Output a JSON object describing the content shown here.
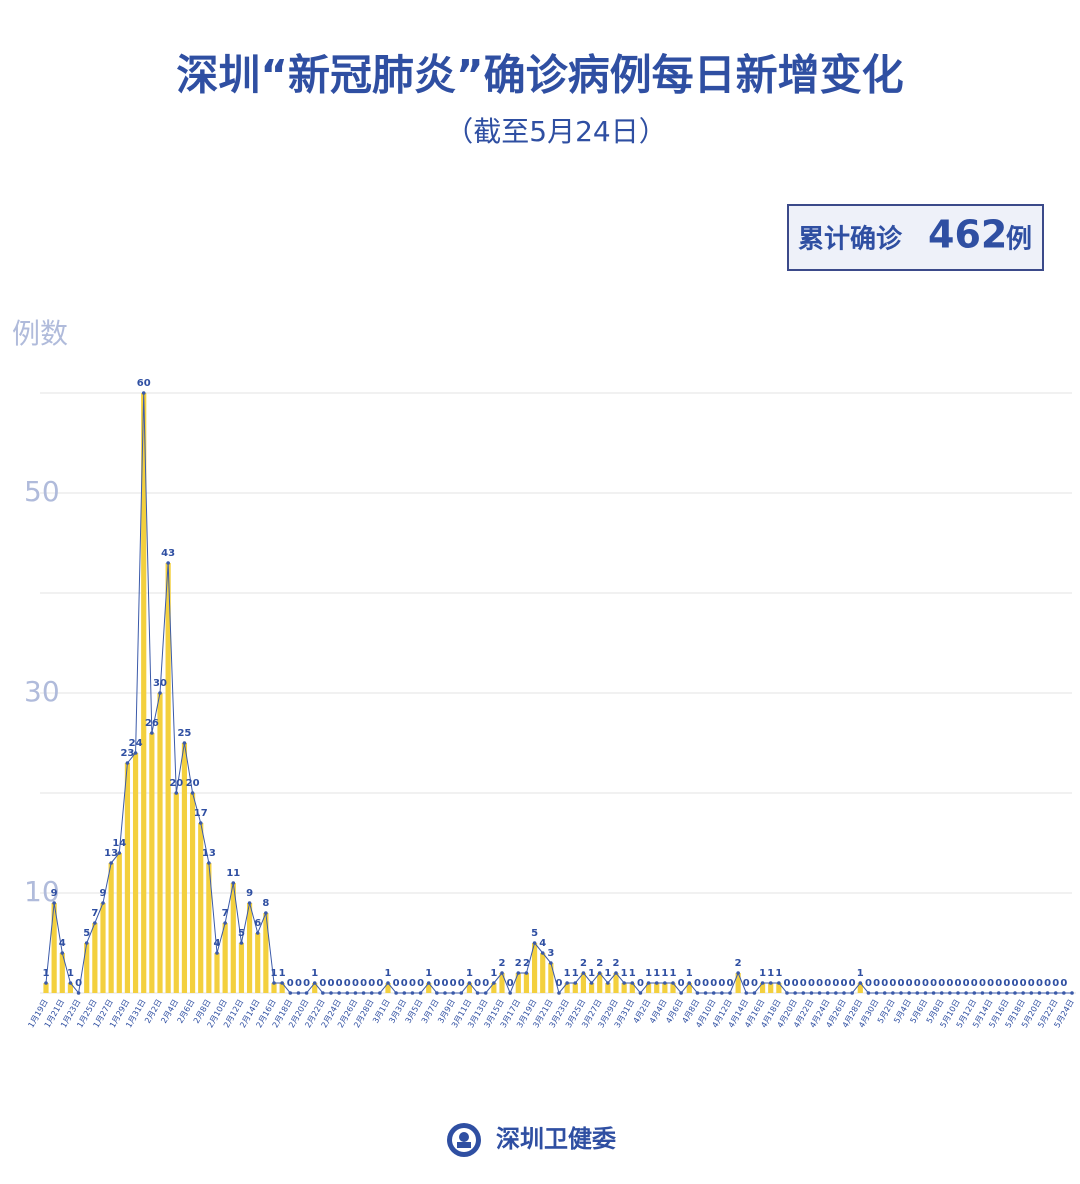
{
  "chart_data": {
    "type": "bar-line",
    "title": "深圳“新冠肺炎”确诊病例每日新增变化",
    "subtitle": "（截至5月24日）",
    "total_box": {
      "prefix": "累计确诊",
      "value": "462",
      "suffix": "例"
    },
    "y_label": "例数",
    "source": "深圳卫健委",
    "categories": [
      "1月19日",
      null,
      "1月21日",
      null,
      "1月23日",
      null,
      "1月25日",
      null,
      "1月27日",
      null,
      "1月29日",
      null,
      "1月31日",
      null,
      "2月2日",
      null,
      "2月4日",
      null,
      "2月6日",
      null,
      "2月8日",
      null,
      "2月10日",
      null,
      "2月12日",
      null,
      "2月14日",
      null,
      "2月16日",
      null,
      "2月18日",
      null,
      "2月20日",
      null,
      "2月22日",
      null,
      "2月24日",
      null,
      "2月26日",
      null,
      "2月28日",
      null,
      "3月1日",
      null,
      "3月3日",
      null,
      "3月5日",
      null,
      "3月7日",
      null,
      "3月9日",
      null,
      "3月11日",
      null,
      "3月13日",
      null,
      "3月15日",
      null,
      "3月17日",
      null,
      "3月19日",
      null,
      "3月21日",
      null,
      "3月23日",
      null,
      "3月25日",
      null,
      "3月27日",
      null,
      "3月29日",
      null,
      "3月31日",
      null,
      "4月2日",
      null,
      "4月4日",
      null,
      "4月6日",
      null,
      "4月8日",
      null,
      "4月10日",
      null,
      "4月12日",
      null,
      "4月14日",
      null,
      "4月16日",
      null,
      "4月18日",
      null,
      "4月20日",
      null,
      "4月22日",
      null,
      "4月24日",
      null,
      "4月26日",
      null,
      "4月28日",
      null,
      "4月30日",
      null,
      "5月2日",
      null,
      "5月4日",
      null,
      "5月6日",
      null,
      "5月8日",
      null,
      "5月10日",
      null,
      "5月12日",
      null,
      "5月14日",
      null,
      "5月16日",
      null,
      "5月18日",
      null,
      "5月20日",
      null,
      "5月22日",
      null,
      "5月24日"
    ],
    "values": [
      1,
      9,
      4,
      1,
      0,
      5,
      7,
      9,
      13,
      14,
      23,
      24,
      60,
      26,
      30,
      43,
      20,
      25,
      20,
      17,
      13,
      4,
      7,
      11,
      5,
      9,
      6,
      8,
      1,
      1,
      0,
      0,
      0,
      1,
      0,
      0,
      0,
      0,
      0,
      0,
      0,
      0,
      1,
      0,
      0,
      0,
      0,
      1,
      0,
      0,
      0,
      0,
      1,
      0,
      0,
      1,
      2,
      0,
      2,
      2,
      5,
      4,
      3,
      0,
      1,
      1,
      2,
      1,
      2,
      1,
      2,
      1,
      1,
      0,
      1,
      1,
      1,
      1,
      0,
      1,
      0,
      0,
      0,
      0,
      0,
      2,
      0,
      0,
      1,
      1,
      1,
      0,
      0,
      0,
      0,
      0,
      0,
      0,
      0,
      0,
      1,
      0,
      0,
      0,
      0,
      0,
      0,
      0,
      0,
      0,
      0,
      0,
      0,
      0,
      0,
      0,
      0,
      0,
      0,
      0,
      0,
      0,
      0,
      0,
      0,
      0,
      0
    ],
    "bar_color": "#f3d03e",
    "line_color": "#3b5aa9",
    "ylim": [
      0,
      60
    ],
    "yticks": [
      10,
      30,
      50
    ],
    "gridlines": [
      20,
      40,
      60
    ]
  }
}
